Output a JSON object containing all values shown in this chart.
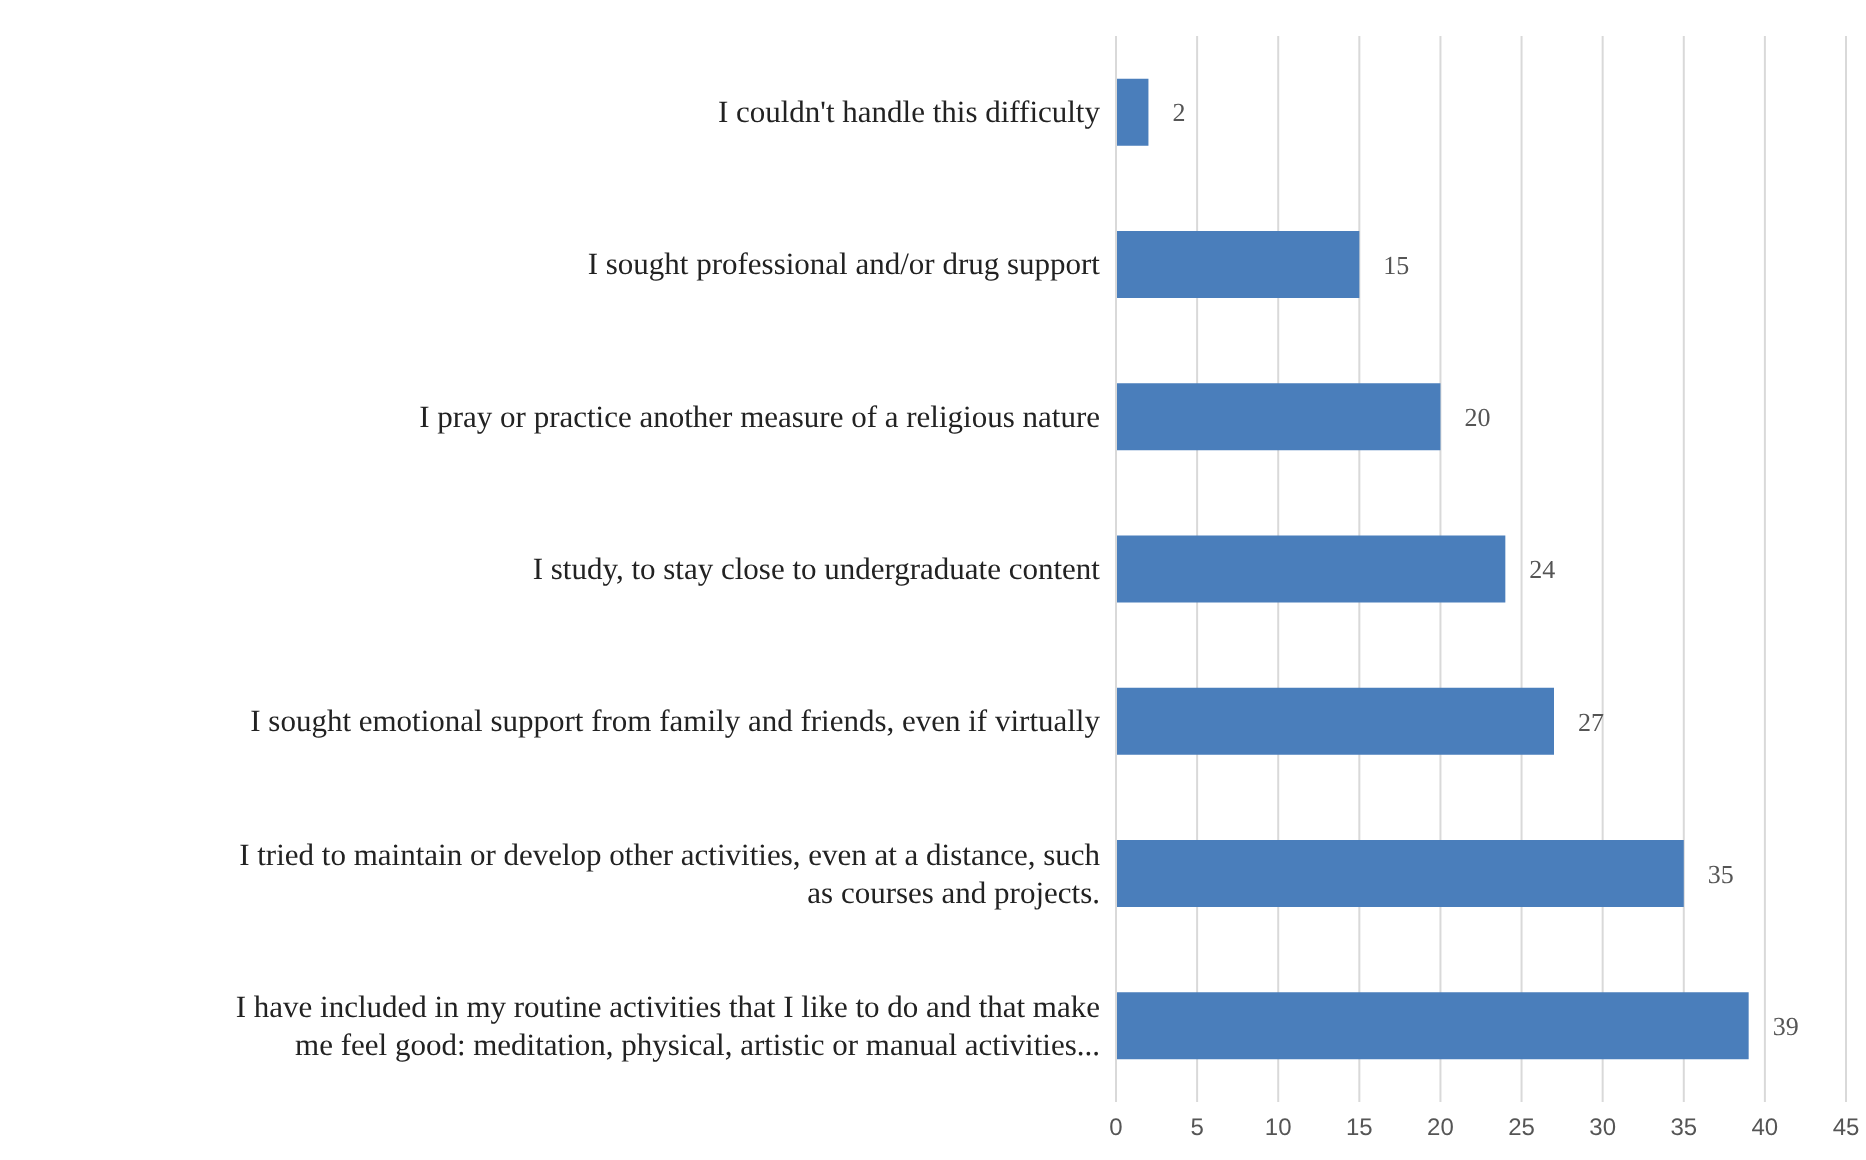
{
  "chart_data": {
    "type": "bar",
    "orientation": "horizontal",
    "categories": [
      "I couldn't handle this difficulty",
      "I sought professional and/or drug support",
      "I pray or practice another measure of a religious nature",
      "I study, to stay close to undergraduate content",
      "I sought emotional support from family and friends, even if virtually",
      "I tried to maintain or develop other activities, even at a distance, such as courses and projects.",
      "I have included in my routine activities that I like to do and that make me feel good: meditation, physical, artistic or manual activities..."
    ],
    "values": [
      2,
      15,
      20,
      24,
      27,
      35,
      39
    ],
    "color": "#4a7ebb",
    "xlim": [
      0,
      45
    ],
    "xticks": [
      0,
      5,
      10,
      15,
      20,
      25,
      30,
      35,
      40,
      45
    ],
    "grid": "x",
    "data_labels": true
  }
}
